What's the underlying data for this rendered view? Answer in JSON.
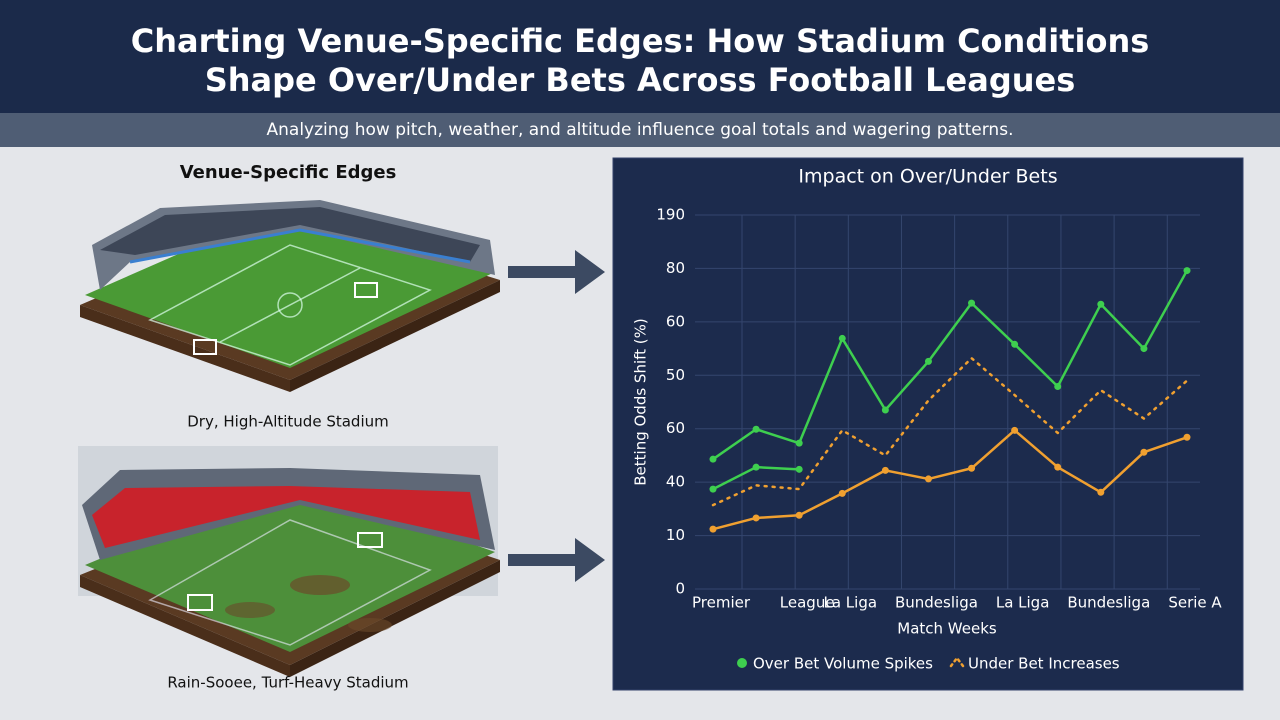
{
  "header": {
    "title": [
      "Charting Venue-Specific Edges: How Stadium Conditions",
      "Shape Over/Under Bets Across Football Leagues"
    ],
    "subtitle": "Analyzing how pitch, weather, and altitude influence goal totals and wagering patterns."
  },
  "left": {
    "title": "Venue-Specific Edges",
    "captions": [
      "Dry, High-Altitude Stadium",
      "Rain-Sooee, Turf-Heavy Stadium"
    ]
  },
  "chart_data": {
    "type": "line",
    "title": "Impact on Over/Under Bets",
    "x_label": "Match Weeks",
    "y_label": "Betting Odds Shift (%)",
    "categories": [
      "Premier",
      null,
      "League",
      "La Liga",
      null,
      "Bundesliga",
      null,
      "La Liga",
      null,
      "Bundesliga",
      null,
      "Serie A"
    ],
    "ylim": [
      0,
      70
    ],
    "yticks": [
      0,
      10,
      {
        "value": 20,
        "label": "40"
      },
      {
        "value": 30,
        "label": "60"
      },
      {
        "value": 40,
        "label": "50"
      },
      {
        "value": 50,
        "label": "60"
      },
      {
        "value": 60,
        "label": "80"
      },
      {
        "value": 70,
        "label": "190"
      }
    ],
    "grid": true,
    "series": [
      {
        "name": "Over Bet Volume Spikes",
        "color": "#3ecf4f",
        "style": "solid",
        "markers": true,
        "values": [
          24.3,
          29.9,
          27.3,
          46.9,
          33.5,
          42.6,
          53.5,
          45.8,
          37.9,
          53.3,
          45.0,
          59.6
        ]
      },
      {
        "color": "#3ecf4f",
        "style": "solid",
        "markers": true,
        "values": [
          18.7,
          22.8,
          22.4,
          null,
          null,
          null,
          null,
          null,
          null,
          null,
          null,
          null
        ]
      },
      {
        "name": "Under Bet Increases",
        "color": "#f0a030",
        "style": "dotted",
        "markers": false,
        "values": [
          15.7,
          19.4,
          18.7,
          29.7,
          25.0,
          35.3,
          43.2,
          36.3,
          29.2,
          37.2,
          31.9,
          39.0
        ]
      },
      {
        "color": "#f0a030",
        "style": "solid",
        "markers": true,
        "values": [
          11.2,
          13.3,
          13.8,
          17.9,
          22.2,
          20.6,
          22.6,
          29.7,
          22.8,
          18.1,
          25.6,
          28.4
        ]
      }
    ]
  }
}
